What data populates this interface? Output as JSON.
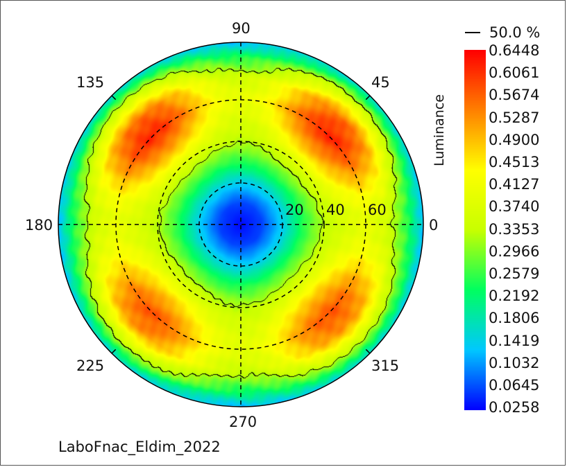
{
  "chart_data": {
    "type": "heatmap",
    "projection": "polar",
    "colorbar_title": "Luminance",
    "colorbar_ticks": [
      "0.6448",
      "0.6061",
      "0.5674",
      "0.5287",
      "0.4900",
      "0.4513",
      "0.4127",
      "0.3740",
      "0.3353",
      "0.2966",
      "0.2579",
      "0.2192",
      "0.1806",
      "0.1419",
      "0.1032",
      "0.0645",
      "0.0258"
    ],
    "range": [
      0.0258,
      0.6448
    ],
    "colormap": [
      "#0000ff",
      "#00c8ff",
      "#00ff60",
      "#c8ff00",
      "#ffff00",
      "#ff8000",
      "#ff0000"
    ],
    "contour_legend": "50.0 %",
    "contour_level": 0.3224,
    "angle_labels": [
      "0",
      "45",
      "90",
      "135",
      "180",
      "225",
      "270",
      "315"
    ],
    "radial_labels": [
      "20",
      "40",
      "60"
    ],
    "radial_rings_deg": [
      20,
      40,
      60
    ],
    "footer": "LaboFnac_Eldim_2022",
    "theta_deg": [
      0,
      10,
      20,
      30,
      40,
      50,
      60,
      70,
      80,
      88
    ],
    "luminance_by_azimuth": [
      {
        "phi": 0,
        "values": [
          0.03,
          0.06,
          0.14,
          0.25,
          0.33,
          0.37,
          0.4,
          0.36,
          0.25,
          0.12
        ]
      },
      {
        "phi": 45,
        "values": [
          0.03,
          0.06,
          0.15,
          0.27,
          0.38,
          0.52,
          0.62,
          0.56,
          0.36,
          0.15
        ]
      },
      {
        "phi": 90,
        "values": [
          0.03,
          0.06,
          0.14,
          0.25,
          0.33,
          0.37,
          0.4,
          0.36,
          0.25,
          0.12
        ]
      },
      {
        "phi": 135,
        "values": [
          0.03,
          0.06,
          0.15,
          0.27,
          0.38,
          0.52,
          0.62,
          0.56,
          0.36,
          0.15
        ]
      },
      {
        "phi": 180,
        "values": [
          0.03,
          0.06,
          0.14,
          0.25,
          0.33,
          0.37,
          0.4,
          0.36,
          0.25,
          0.12
        ]
      },
      {
        "phi": 225,
        "values": [
          0.03,
          0.06,
          0.15,
          0.27,
          0.37,
          0.49,
          0.58,
          0.53,
          0.34,
          0.15
        ]
      },
      {
        "phi": 270,
        "values": [
          0.03,
          0.06,
          0.14,
          0.25,
          0.33,
          0.37,
          0.39,
          0.35,
          0.24,
          0.12
        ]
      },
      {
        "phi": 315,
        "values": [
          0.03,
          0.06,
          0.15,
          0.27,
          0.37,
          0.49,
          0.58,
          0.53,
          0.34,
          0.15
        ]
      }
    ]
  }
}
